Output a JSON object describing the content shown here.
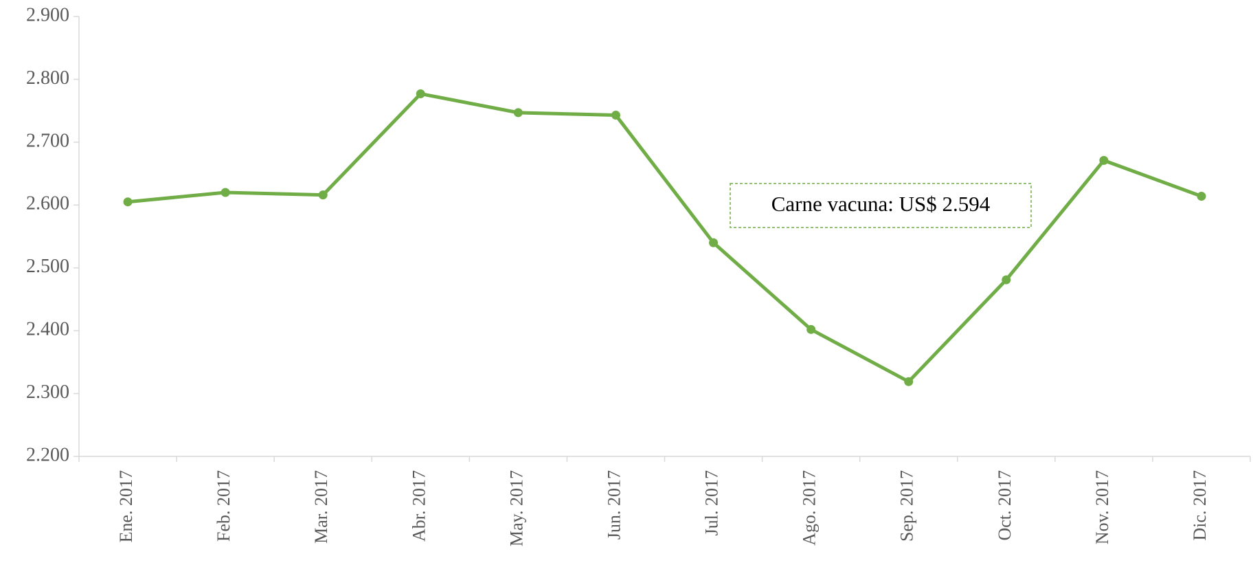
{
  "chart_data": {
    "type": "line",
    "categories": [
      "Ene. 2017",
      "Feb. 2017",
      "Mar. 2017",
      "Abr. 2017",
      "May. 2017",
      "Jun. 2017",
      "Jul. 2017",
      "Ago. 2017",
      "Sep. 2017",
      "Oct. 2017",
      "Nov. 2017",
      "Dic. 2017"
    ],
    "series": [
      {
        "name": "Carne vacuna",
        "color": "#70ad47",
        "values": [
          2605,
          2620,
          2616,
          2777,
          2747,
          2743,
          2540,
          2402,
          2319,
          2481,
          2671,
          2614
        ]
      }
    ],
    "ylim": [
      2200,
      2900
    ],
    "yticks": [
      {
        "value": 2200,
        "label": "2.200"
      },
      {
        "value": 2300,
        "label": "2.300"
      },
      {
        "value": 2400,
        "label": "2.400"
      },
      {
        "value": 2500,
        "label": "2.500"
      },
      {
        "value": 2600,
        "label": "2.600"
      },
      {
        "value": 2700,
        "label": "2.700"
      },
      {
        "value": 2800,
        "label": "2.800"
      },
      {
        "value": 2900,
        "label": "2.900"
      }
    ],
    "grid": false,
    "annotation": "Carne vacuna: US$ 2.594"
  }
}
